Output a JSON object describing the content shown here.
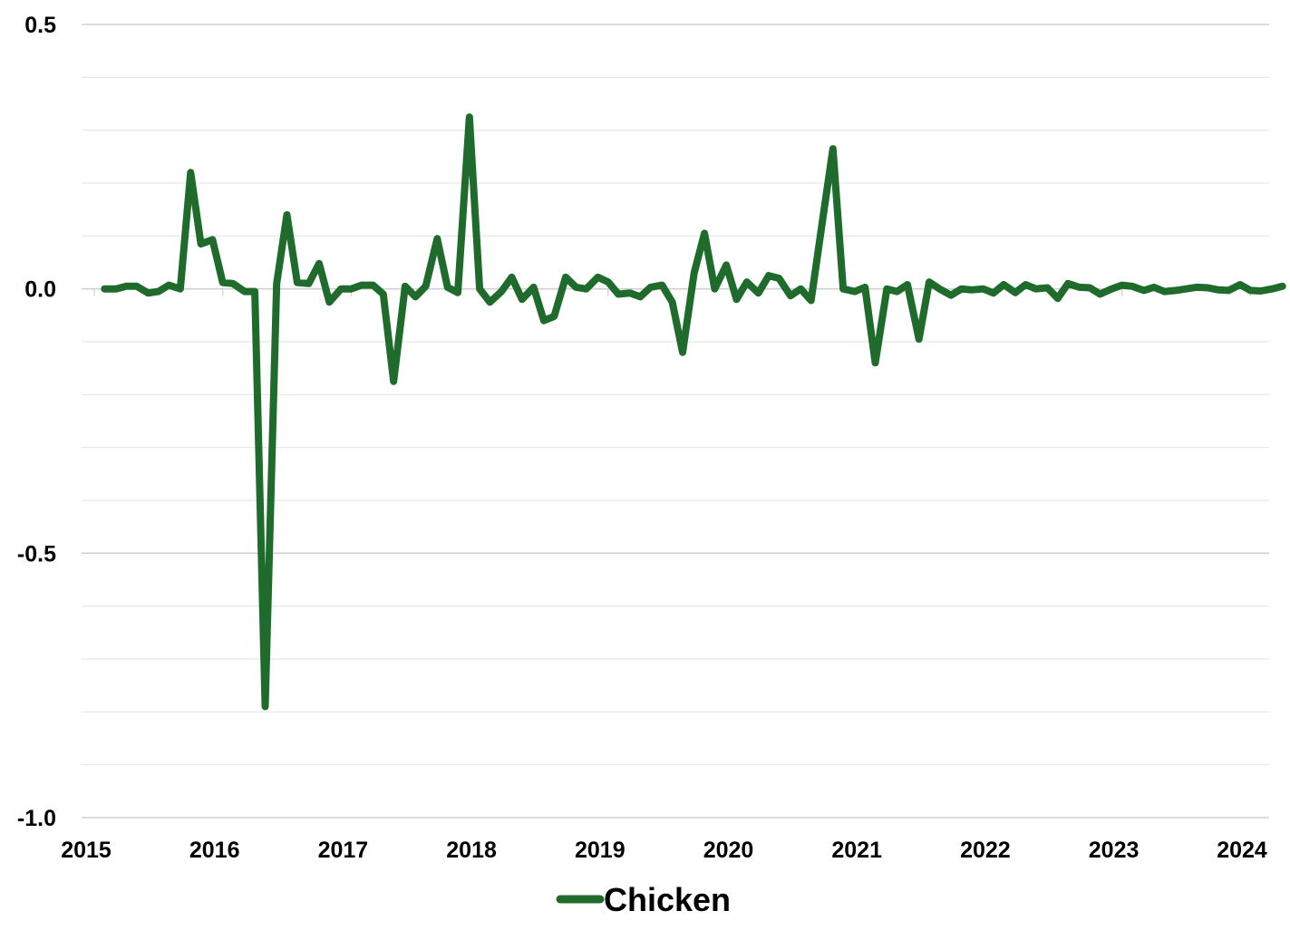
{
  "chart_data": {
    "type": "line",
    "title": "",
    "xlabel": "",
    "ylabel": "",
    "ylim": [
      -1.0,
      0.5
    ],
    "y_ticks": [
      "0.5",
      "0.0",
      "-0.5",
      "-1.0"
    ],
    "y_tick_values": [
      0.5,
      0.0,
      -0.5,
      -1.0
    ],
    "y_minor_gridlines": [
      0.4,
      0.3,
      0.2,
      0.1,
      -0.1,
      -0.2,
      -0.3,
      -0.4,
      -0.6,
      -0.7,
      -0.8,
      -0.9
    ],
    "x_ticks": [
      "2015",
      "2016",
      "2017",
      "2018",
      "2019",
      "2020",
      "2021",
      "2022",
      "2023",
      "2024"
    ],
    "x_tick_values": [
      2015.0,
      2016.0,
      2017.0,
      2018.0,
      2019.0,
      2020.0,
      2021.0,
      2022.0,
      2023.0,
      2024.0
    ],
    "xlim": [
      2015.0,
      2024.25
    ],
    "grid": true,
    "legend_position": "bottom-center",
    "colors": {
      "series": "#1f6b2b",
      "grid": "#d9d9d9"
    },
    "series": [
      {
        "name": "Chicken",
        "color": "#1f6b2b",
        "x": [
          2015.08,
          2015.17,
          2015.25,
          2015.33,
          2015.42,
          2015.5,
          2015.58,
          2015.67,
          2015.75,
          2015.83,
          2015.92,
          2016.0,
          2016.08,
          2016.17,
          2016.25,
          2016.33,
          2016.42,
          2016.5,
          2016.58,
          2016.67,
          2016.75,
          2016.83,
          2016.92,
          2017.0,
          2017.08,
          2017.17,
          2017.25,
          2017.33,
          2017.42,
          2017.5,
          2017.58,
          2017.67,
          2017.75,
          2017.83,
          2017.92,
          2018.0,
          2018.08,
          2018.17,
          2018.25,
          2018.33,
          2018.42,
          2018.5,
          2018.58,
          2018.67,
          2018.75,
          2018.83,
          2018.92,
          2019.0,
          2019.08,
          2019.17,
          2019.25,
          2019.33,
          2019.42,
          2019.5,
          2019.58,
          2019.67,
          2019.75,
          2019.83,
          2019.92,
          2020.0,
          2020.08,
          2020.17,
          2020.25,
          2020.33,
          2020.42,
          2020.5,
          2020.58,
          2020.67,
          2020.75,
          2020.83,
          2020.92,
          2021.0,
          2021.08,
          2021.17,
          2021.25,
          2021.33,
          2021.42,
          2021.5,
          2021.58,
          2021.67,
          2021.75,
          2021.83,
          2021.92,
          2022.0,
          2022.08,
          2022.17,
          2022.25,
          2022.33,
          2022.42,
          2022.5,
          2022.58,
          2022.67,
          2022.75,
          2022.83,
          2022.92,
          2023.0,
          2023.08,
          2023.17,
          2023.25,
          2023.33,
          2023.42,
          2023.5,
          2023.58,
          2023.67,
          2023.75,
          2023.83,
          2023.92,
          2024.0,
          2024.08,
          2024.17,
          2024.25
        ],
        "values": [
          0.0,
          0.0,
          0.005,
          0.005,
          -0.008,
          -0.005,
          0.007,
          0.0,
          0.22,
          0.085,
          0.093,
          0.012,
          0.01,
          -0.005,
          -0.005,
          -0.79,
          0.01,
          0.14,
          0.012,
          0.01,
          0.048,
          -0.025,
          0.0,
          0.0,
          0.007,
          0.007,
          -0.01,
          -0.175,
          0.005,
          -0.015,
          0.005,
          0.095,
          0.003,
          -0.007,
          0.325,
          0.0,
          -0.025,
          -0.005,
          0.022,
          -0.02,
          0.003,
          -0.06,
          -0.052,
          0.022,
          0.003,
          0.0,
          0.022,
          0.013,
          -0.01,
          -0.008,
          -0.015,
          0.003,
          0.007,
          -0.025,
          -0.12,
          0.03,
          0.105,
          0.0,
          0.045,
          -0.02,
          0.013,
          -0.008,
          0.025,
          0.02,
          -0.013,
          0.0,
          -0.022,
          0.13,
          0.265,
          0.0,
          -0.005,
          0.003,
          -0.14,
          0.0,
          -0.005,
          0.008,
          -0.095,
          0.013,
          0.0,
          -0.012,
          0.0,
          -0.002,
          0.0,
          -0.008,
          0.008,
          -0.007,
          0.008,
          0.0,
          0.002,
          -0.018,
          0.01,
          0.003,
          0.002,
          -0.01,
          0.0,
          0.007,
          0.005,
          -0.003,
          0.003,
          -0.005,
          -0.003,
          0.0,
          0.003,
          0.002,
          -0.002,
          -0.003,
          0.008,
          -0.003,
          -0.004,
          0.0,
          0.005
        ]
      }
    ]
  },
  "legend": {
    "label": "Chicken"
  }
}
